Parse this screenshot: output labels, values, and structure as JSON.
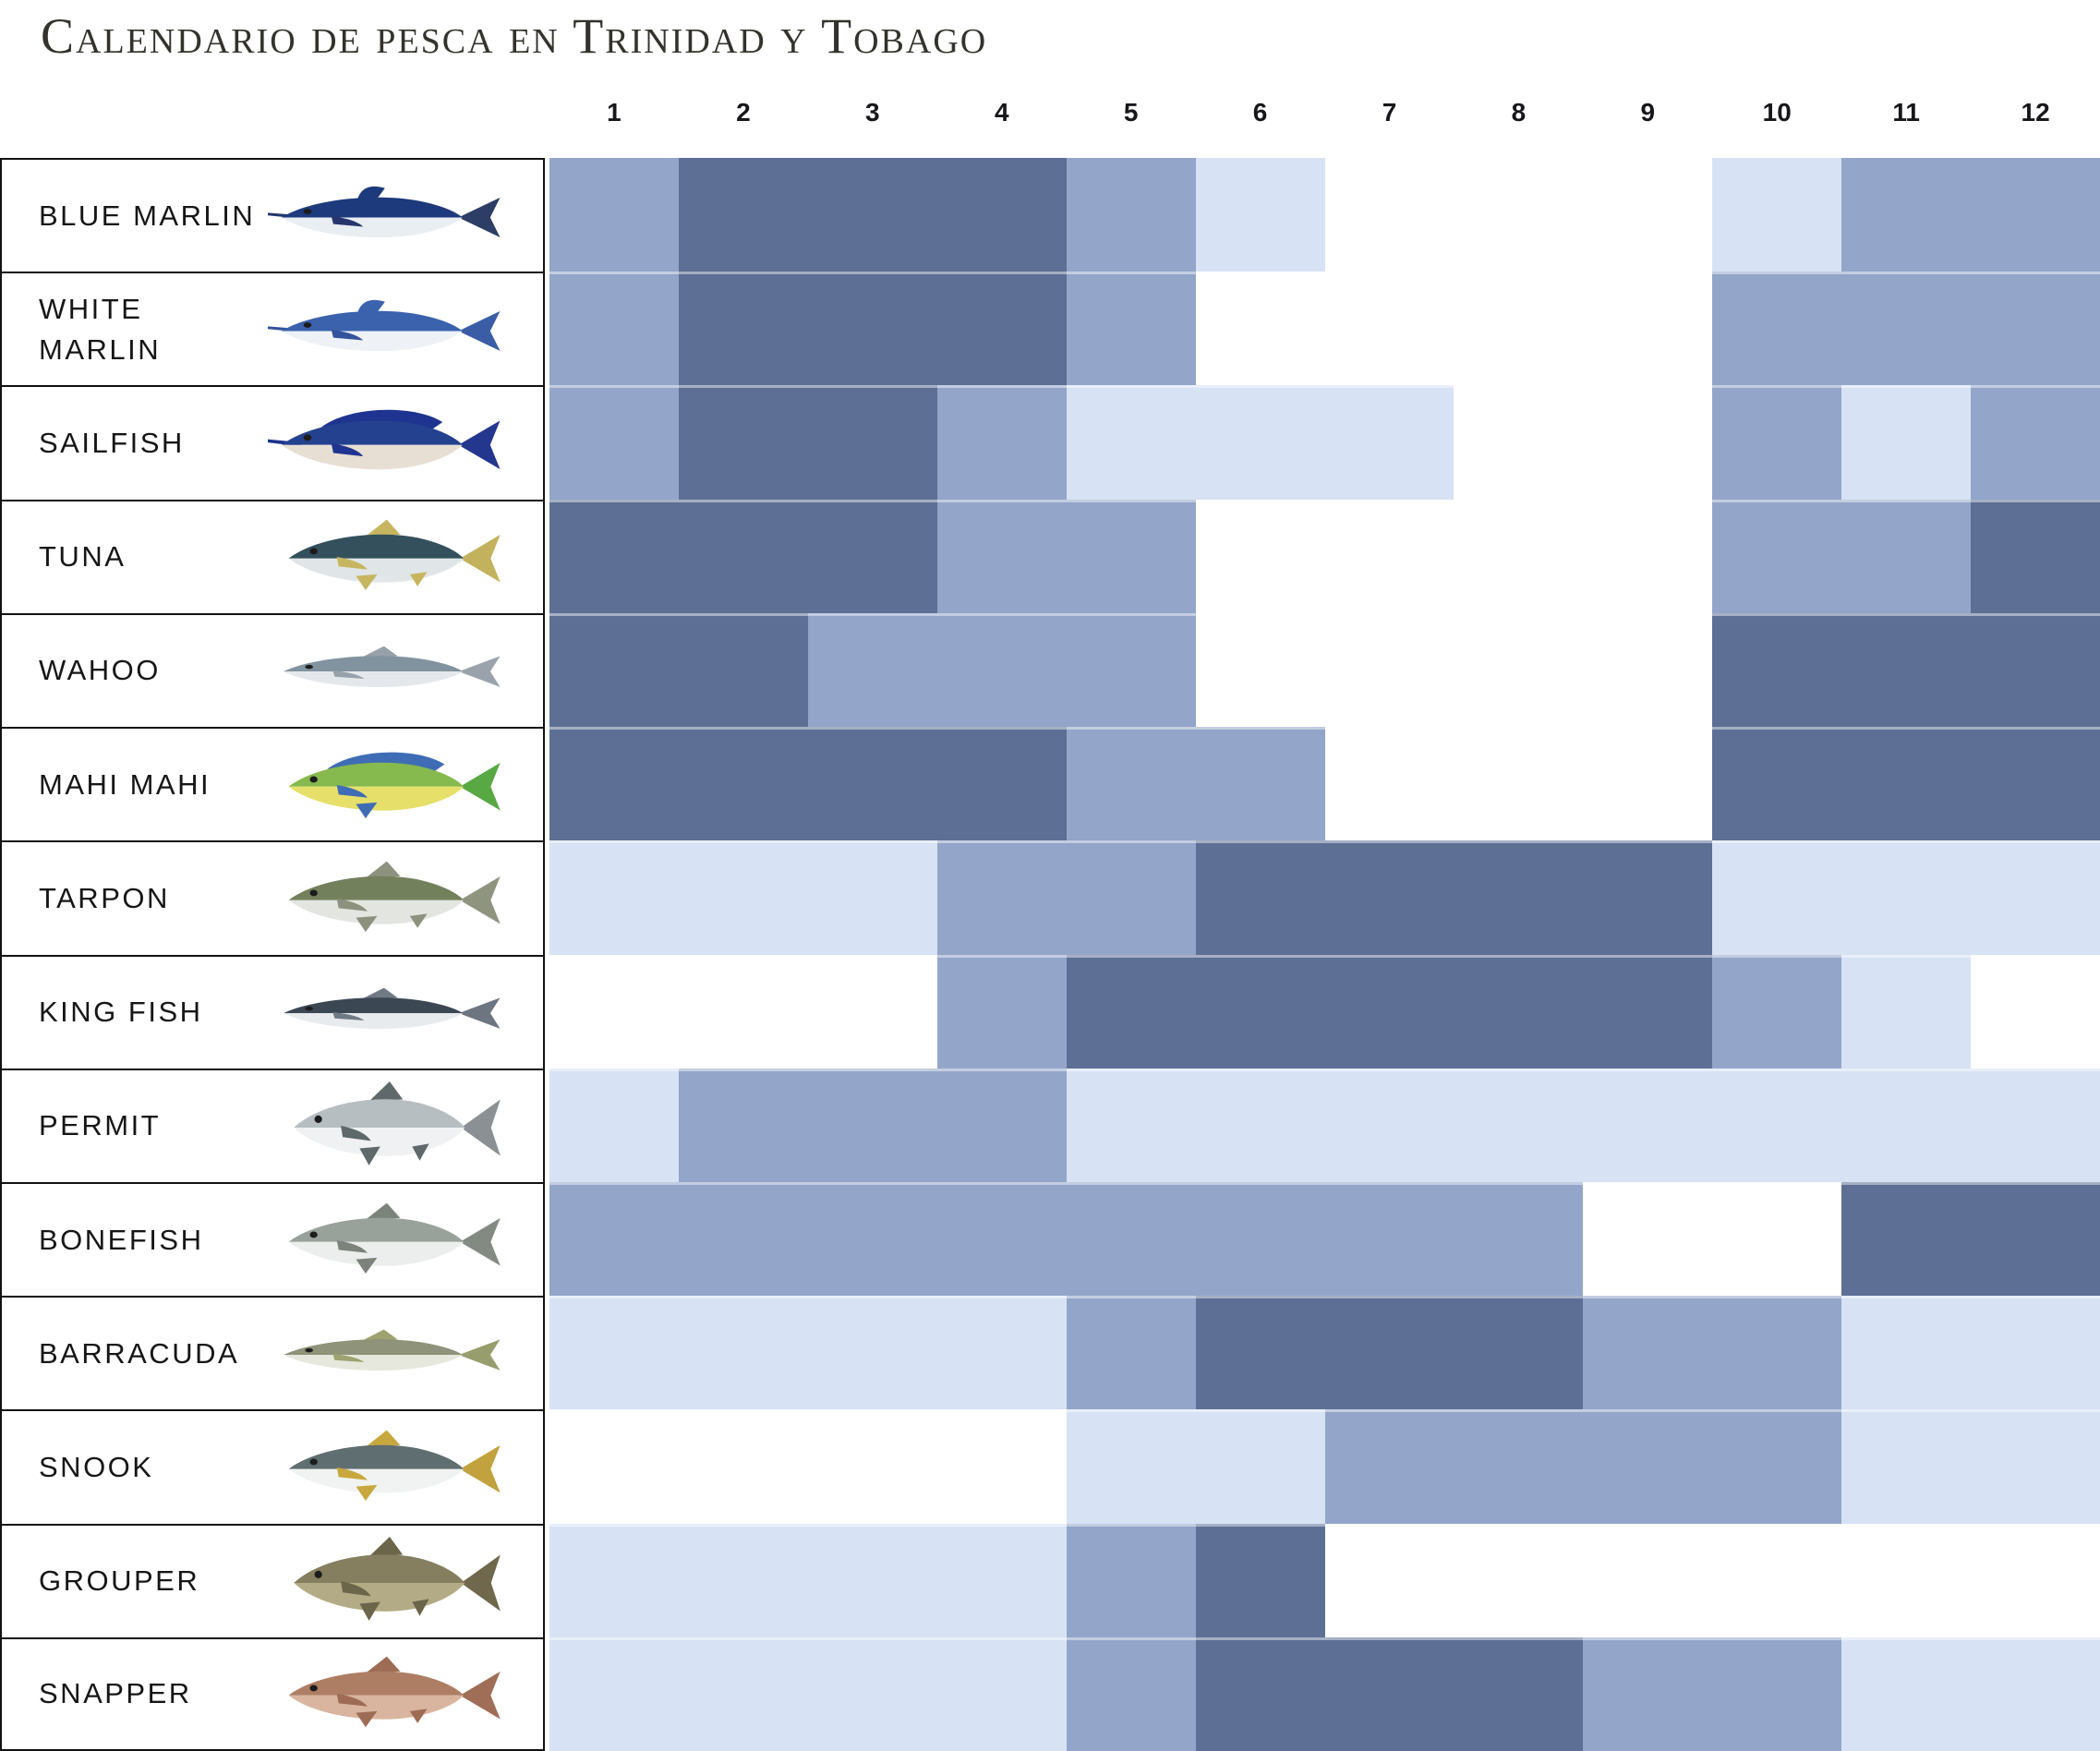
{
  "title": "Calendario de pesca en Trinidad y Tobago",
  "months": [
    "1",
    "2",
    "3",
    "4",
    "5",
    "6",
    "7",
    "8",
    "9",
    "10",
    "11",
    "12"
  ],
  "palette": {
    "excellent": "#5D6F94",
    "good": "#93A5C9",
    "fair": "#D7E2F4",
    "poor": "#FFFFFF",
    "eye": "#1c1c1c",
    "border": "#121212",
    "title_text": "#33322b",
    "label_text": "#161616"
  },
  "rows": [
    {
      "name": "BLUE MARLIN",
      "months": [
        "good",
        "excellent",
        "excellent",
        "excellent",
        "good",
        "fair",
        "poor",
        "poor",
        "poor",
        "fair",
        "good",
        "good"
      ],
      "icon": {
        "back": "#1d3a7c",
        "belly": "#e9eef3",
        "fin": "#24366d",
        "tail": "#2c3d66"
      }
    },
    {
      "name": "WHITE MARLIN",
      "months": [
        "good",
        "excellent",
        "excellent",
        "excellent",
        "good",
        "poor",
        "poor",
        "poor",
        "poor",
        "good",
        "good",
        "good"
      ],
      "icon": {
        "back": "#3a62ad",
        "belly": "#eef2f7",
        "fin": "#33549c",
        "tail": "#3a5da6"
      }
    },
    {
      "name": "SAILFISH",
      "months": [
        "good",
        "excellent",
        "excellent",
        "good",
        "fair",
        "fair",
        "fair",
        "poor",
        "poor",
        "good",
        "fair",
        "good"
      ],
      "icon": {
        "back": "#23418f",
        "belly": "#e8dfd4",
        "fin": "#1f3490",
        "tail": "#24378f"
      }
    },
    {
      "name": "TUNA",
      "months": [
        "excellent",
        "excellent",
        "excellent",
        "good",
        "good",
        "poor",
        "poor",
        "poor",
        "poor",
        "good",
        "good",
        "excellent"
      ],
      "icon": {
        "back": "#33505c",
        "belly": "#e0e6e7",
        "fin": "#c7b660",
        "tail": "#c2b25e"
      }
    },
    {
      "name": "WAHOO",
      "months": [
        "excellent",
        "excellent",
        "good",
        "good",
        "good",
        "poor",
        "poor",
        "poor",
        "poor",
        "excellent",
        "excellent",
        "excellent"
      ],
      "icon": {
        "back": "#8293a0",
        "belly": "#e4e8ec",
        "fin": "#97a1a9",
        "tail": "#9aa3ab"
      }
    },
    {
      "name": "MAHI MAHI",
      "months": [
        "excellent",
        "excellent",
        "excellent",
        "excellent",
        "good",
        "good",
        "poor",
        "poor",
        "poor",
        "excellent",
        "excellent",
        "excellent"
      ],
      "icon": {
        "back": "#86b94e",
        "belly": "#e6e06a",
        "fin": "#3f6db5",
        "tail": "#58a844"
      }
    },
    {
      "name": "TARPON",
      "months": [
        "fair",
        "fair",
        "fair",
        "good",
        "good",
        "excellent",
        "excellent",
        "excellent",
        "excellent",
        "fair",
        "fair",
        "fair"
      ],
      "icon": {
        "back": "#73805c",
        "belly": "#e2e5e0",
        "fin": "#8d927e",
        "tail": "#8f947f"
      }
    },
    {
      "name": "KING FISH",
      "months": [
        "poor",
        "poor",
        "poor",
        "good",
        "excellent",
        "excellent",
        "excellent",
        "excellent",
        "excellent",
        "good",
        "fair",
        "poor"
      ],
      "icon": {
        "back": "#3c4754",
        "belly": "#e8ebee",
        "fin": "#707a85",
        "tail": "#6d7680"
      }
    },
    {
      "name": "PERMIT",
      "months": [
        "fair",
        "good",
        "good",
        "good",
        "fair",
        "fair",
        "fair",
        "fair",
        "fair",
        "fair",
        "fair",
        "fair"
      ],
      "icon": {
        "back": "#b7bec2",
        "belly": "#f0f1f2",
        "fin": "#5f686b",
        "tail": "#8a9093"
      }
    },
    {
      "name": "BONEFISH",
      "months": [
        "good",
        "good",
        "good",
        "good",
        "good",
        "good",
        "good",
        "good",
        "poor",
        "poor",
        "excellent",
        "excellent"
      ],
      "icon": {
        "back": "#98a29b",
        "belly": "#ebeeec",
        "fin": "#7b837a",
        "tail": "#828a81"
      }
    },
    {
      "name": "BARRACUDA",
      "months": [
        "fair",
        "fair",
        "fair",
        "fair",
        "good",
        "excellent",
        "excellent",
        "excellent",
        "good",
        "good",
        "fair",
        "fair"
      ],
      "icon": {
        "back": "#8e9379",
        "belly": "#e6e8dd",
        "fin": "#9da26f",
        "tail": "#989d6d"
      }
    },
    {
      "name": "SNOOK",
      "months": [
        "poor",
        "poor",
        "poor",
        "poor",
        "fair",
        "fair",
        "good",
        "good",
        "good",
        "good",
        "fair",
        "fair"
      ],
      "icon": {
        "back": "#5f6e70",
        "belly": "#f1f3f3",
        "fin": "#c8a83e",
        "tail": "#c2a23e"
      }
    },
    {
      "name": "GROUPER",
      "months": [
        "fair",
        "fair",
        "fair",
        "fair",
        "good",
        "excellent",
        "poor",
        "poor",
        "poor",
        "poor",
        "poor",
        "poor"
      ],
      "icon": {
        "back": "#857f60",
        "belly": "#b3ab85",
        "fin": "#6b654a",
        "tail": "#6f684d"
      }
    },
    {
      "name": "SNAPPER",
      "months": [
        "fair",
        "fair",
        "fair",
        "fair",
        "good",
        "excellent",
        "excellent",
        "excellent",
        "good",
        "good",
        "fair",
        "fair"
      ],
      "icon": {
        "back": "#ad7d64",
        "belly": "#d9b59f",
        "fin": "#9e6c55",
        "tail": "#a06e57"
      }
    }
  ],
  "chart_data": {
    "type": "heatmap",
    "title": "Calendario de pesca en Trinidad y Tobago",
    "x_labels": [
      "1",
      "2",
      "3",
      "4",
      "5",
      "6",
      "7",
      "8",
      "9",
      "10",
      "11",
      "12"
    ],
    "y_labels": [
      "BLUE MARLIN",
      "WHITE MARLIN",
      "SAILFISH",
      "TUNA",
      "WAHOO",
      "MAHI MAHI",
      "TARPON",
      "KING FISH",
      "PERMIT",
      "BONEFISH",
      "BARRACUDA",
      "SNOOK",
      "GROUPER",
      "SNAPPER"
    ],
    "legend_position": "none",
    "grid": false,
    "level_scale": {
      "3": "excellent (dark #5D6F94)",
      "2": "good (medium #93A5C9)",
      "1": "fair (light #D7E2F4)",
      "0": "off-season (white)"
    },
    "values": [
      [
        2,
        3,
        3,
        3,
        2,
        1,
        0,
        0,
        0,
        1,
        2,
        2
      ],
      [
        2,
        3,
        3,
        3,
        2,
        0,
        0,
        0,
        0,
        2,
        2,
        2
      ],
      [
        2,
        3,
        3,
        2,
        1,
        1,
        1,
        0,
        0,
        2,
        1,
        2
      ],
      [
        3,
        3,
        3,
        2,
        2,
        0,
        0,
        0,
        0,
        2,
        2,
        3
      ],
      [
        3,
        3,
        2,
        2,
        2,
        0,
        0,
        0,
        0,
        3,
        3,
        3
      ],
      [
        3,
        3,
        3,
        3,
        2,
        2,
        0,
        0,
        0,
        3,
        3,
        3
      ],
      [
        1,
        1,
        1,
        2,
        2,
        3,
        3,
        3,
        3,
        1,
        1,
        1
      ],
      [
        0,
        0,
        0,
        2,
        3,
        3,
        3,
        3,
        3,
        2,
        1,
        0
      ],
      [
        1,
        2,
        2,
        2,
        1,
        1,
        1,
        1,
        1,
        1,
        1,
        1
      ],
      [
        2,
        2,
        2,
        2,
        2,
        2,
        2,
        2,
        0,
        0,
        3,
        3
      ],
      [
        1,
        1,
        1,
        1,
        2,
        3,
        3,
        3,
        2,
        2,
        1,
        1
      ],
      [
        0,
        0,
        0,
        0,
        1,
        1,
        2,
        2,
        2,
        2,
        1,
        1
      ],
      [
        1,
        1,
        1,
        1,
        2,
        3,
        0,
        0,
        0,
        0,
        0,
        0
      ],
      [
        1,
        1,
        1,
        1,
        2,
        3,
        3,
        3,
        2,
        2,
        1,
        1
      ]
    ]
  }
}
